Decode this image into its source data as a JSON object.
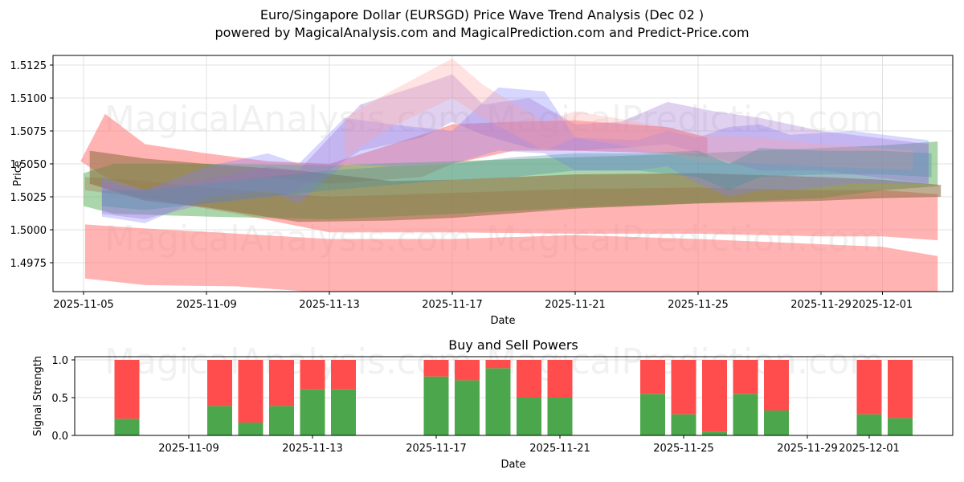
{
  "header": {
    "title": "Euro/Singapore Dollar (EURSGD) Price Wave Trend Analysis (Dec 02 )",
    "subtitle": "powered by MagicalAnalysis.com and MagicalPrediction.com and Predict-Price.com"
  },
  "watermarks": [
    "MagicalAnalysis.com",
    "MagicalPrediction.com"
  ],
  "colors": {
    "buy": "#4ca64c",
    "sell": "#ff4c4c",
    "band_red": "#ff8080",
    "band_green": "#66b366",
    "band_blue": "#8080ff",
    "band_purple": "#a070d0",
    "grid": "#d9d9d9"
  },
  "chart_data": [
    {
      "type": "area",
      "title": "",
      "xlabel": "Date",
      "ylabel": "Price",
      "ylim": [
        1.4955,
        1.5132
      ],
      "xlim": [
        "2025-11-04",
        "2025-12-03"
      ],
      "grid": true,
      "x_ticks": [
        "2025-11-05",
        "2025-11-09",
        "2025-11-13",
        "2025-11-17",
        "2025-11-21",
        "2025-11-25",
        "2025-11-29",
        "2025-12-01"
      ],
      "y_ticks": [
        "1.4975",
        "1.5000",
        "1.5025",
        "1.5050",
        "1.5075",
        "1.5100",
        "1.5125"
      ],
      "series": [
        {
          "name": "red-wave-low",
          "color": "#ff8080",
          "opacity": 0.6,
          "x": [
            5.05,
            7,
            10,
            13,
            17,
            21,
            25,
            29,
            31,
            32.8
          ],
          "upper": [
            1.5004,
            1.5001,
            1.4997,
            1.4993,
            1.4993,
            1.4996,
            1.4993,
            1.4989,
            1.4987,
            1.498
          ],
          "lower": [
            1.4963,
            1.4958,
            1.4957,
            1.4952,
            1.495,
            1.495,
            1.495,
            1.495,
            1.495,
            1.495
          ]
        },
        {
          "name": "red-wave-mid",
          "color": "#ff8080",
          "opacity": 0.6,
          "x": [
            5.05,
            7,
            10,
            13,
            17,
            21,
            25,
            29,
            31,
            32.8
          ],
          "upper": [
            1.504,
            1.5037,
            1.503,
            1.5025,
            1.5028,
            1.5031,
            1.5032,
            1.503,
            1.503,
            1.5027
          ],
          "lower": [
            1.503,
            1.5024,
            1.5012,
            1.4998,
            1.4998,
            1.4997,
            1.4997,
            1.4995,
            1.4995,
            1.4992
          ]
        },
        {
          "name": "red-wave-high",
          "color": "#ff8080",
          "opacity": 0.6,
          "x": [
            4.9,
            5.7,
            7,
            9,
            11,
            13,
            16,
            17,
            19,
            21,
            24,
            25.3
          ],
          "upper": [
            1.5052,
            1.5088,
            1.5065,
            1.5058,
            1.5052,
            1.505,
            1.5072,
            1.508,
            1.5082,
            1.5083,
            1.5078,
            1.507
          ],
          "lower": [
            1.5052,
            1.504,
            1.503,
            1.5035,
            1.504,
            1.5035,
            1.504,
            1.505,
            1.506,
            1.506,
            1.5058,
            1.5055
          ]
        },
        {
          "name": "green-wave",
          "color": "#66b366",
          "opacity": 0.55,
          "x": [
            5,
            6,
            9,
            13,
            17,
            21,
            25,
            29,
            31,
            32.8
          ],
          "upper": [
            1.5043,
            1.505,
            1.505,
            1.5049,
            1.5052,
            1.5055,
            1.5058,
            1.5062,
            1.5064,
            1.5067
          ],
          "lower": [
            1.5018,
            1.5012,
            1.501,
            1.5008,
            1.5012,
            1.5017,
            1.502,
            1.5024,
            1.503,
            1.5033
          ]
        },
        {
          "name": "olive-wave",
          "color": "#8a6a3a",
          "opacity": 0.55,
          "x": [
            5.2,
            7,
            9,
            12,
            15,
            17,
            21,
            25,
            29,
            31,
            32.9
          ],
          "upper": [
            1.506,
            1.5054,
            1.505,
            1.5045,
            1.5037,
            1.5038,
            1.5042,
            1.5043,
            1.504,
            1.5038,
            1.5034
          ],
          "lower": [
            1.5035,
            1.5022,
            1.5017,
            1.5006,
            1.5007,
            1.5009,
            1.5016,
            1.502,
            1.5022,
            1.5024,
            1.5025
          ]
        },
        {
          "name": "blue-wave-1",
          "color": "#8080ff",
          "opacity": 0.32,
          "x": [
            5.6,
            7,
            9,
            11,
            12,
            13.5,
            15,
            17,
            18.5,
            20,
            21,
            23,
            24,
            25,
            26,
            27,
            28,
            30,
            32.5
          ],
          "upper": [
            1.504,
            1.503,
            1.5048,
            1.5058,
            1.505,
            1.5085,
            1.508,
            1.5075,
            1.5108,
            1.5105,
            1.507,
            1.5068,
            1.5075,
            1.507,
            1.5078,
            1.508,
            1.5072,
            1.5075,
            1.5068
          ],
          "lower": [
            1.501,
            1.5005,
            1.5025,
            1.503,
            1.502,
            1.505,
            1.5048,
            1.505,
            1.506,
            1.5058,
            1.5045,
            1.5045,
            1.5048,
            1.5035,
            1.5025,
            1.503,
            1.503,
            1.5035,
            1.5035
          ]
        },
        {
          "name": "purple-wave-1",
          "color": "#a070d0",
          "opacity": 0.32,
          "x": [
            5.6,
            7,
            9,
            11,
            12,
            14,
            16,
            17,
            18,
            19.5,
            21,
            22.5,
            24,
            25.5,
            27,
            29,
            32.5
          ],
          "upper": [
            1.5035,
            1.503,
            1.5038,
            1.5048,
            1.5045,
            1.5095,
            1.511,
            1.5118,
            1.5095,
            1.51,
            1.508,
            1.5082,
            1.5097,
            1.509,
            1.5085,
            1.5075,
            1.5065
          ],
          "lower": [
            1.5012,
            1.5008,
            1.502,
            1.5025,
            1.503,
            1.506,
            1.507,
            1.5082,
            1.5072,
            1.5062,
            1.506,
            1.5062,
            1.5065,
            1.5055,
            1.5045,
            1.5045,
            1.5035
          ]
        },
        {
          "name": "pink-wave",
          "color": "#ffa0a0",
          "opacity": 0.3,
          "x": [
            13.5,
            15,
            17,
            18,
            20,
            21,
            23,
            25,
            27,
            29,
            32
          ],
          "upper": [
            1.5085,
            1.5105,
            1.513,
            1.511,
            1.5082,
            1.509,
            1.5082,
            1.5072,
            1.507,
            1.5065,
            1.506
          ],
          "lower": [
            1.5055,
            1.5078,
            1.51,
            1.5085,
            1.506,
            1.507,
            1.5062,
            1.5052,
            1.505,
            1.5048,
            1.5045
          ]
        },
        {
          "name": "teal-wave",
          "color": "#4a90a0",
          "opacity": 0.35,
          "x": [
            5.6,
            7,
            9,
            11,
            13,
            15,
            17,
            19,
            21,
            23,
            25,
            26,
            27,
            29,
            31,
            32.6
          ],
          "upper": [
            1.503,
            1.503,
            1.5035,
            1.504,
            1.5045,
            1.5048,
            1.505,
            1.5055,
            1.5058,
            1.5058,
            1.506,
            1.505,
            1.5062,
            1.506,
            1.506,
            1.5058
          ],
          "lower": [
            1.5018,
            1.5015,
            1.502,
            1.5025,
            1.503,
            1.5034,
            1.5038,
            1.504,
            1.5045,
            1.5045,
            1.504,
            1.503,
            1.504,
            1.5042,
            1.5042,
            1.504
          ]
        }
      ]
    },
    {
      "type": "bar",
      "title": "Buy and Sell Powers",
      "xlabel": "Date",
      "ylabel": "Signal Strength",
      "ylim": [
        0,
        1.05
      ],
      "grid": true,
      "x_ticks": [
        "2025-11-09",
        "2025-11-13",
        "2025-11-17",
        "2025-11-21",
        "2025-11-25",
        "2025-11-29",
        "2025-12-01"
      ],
      "y_ticks": [
        "0.0",
        "0.5",
        "1.0"
      ],
      "categories": [
        "2025-11-07",
        "2025-11-10",
        "2025-11-11",
        "2025-11-12",
        "2025-11-13",
        "2025-11-14",
        "2025-11-17",
        "2025-11-18",
        "2025-11-19",
        "2025-11-20",
        "2025-11-21",
        "2025-11-24",
        "2025-11-25",
        "2025-11-26",
        "2025-11-27",
        "2025-11-28",
        "2025-12-01",
        "2025-12-02"
      ],
      "series": [
        {
          "name": "Buy",
          "color": "#4ca64c",
          "values": [
            0.22,
            0.39,
            0.17,
            0.39,
            0.61,
            0.61,
            0.78,
            0.73,
            0.89,
            0.5,
            0.5,
            0.55,
            0.28,
            0.05,
            0.55,
            0.33,
            0.28,
            0.23
          ]
        },
        {
          "name": "Sell",
          "color": "#ff4c4c",
          "values": [
            0.78,
            0.61,
            0.83,
            0.61,
            0.39,
            0.39,
            0.22,
            0.27,
            0.11,
            0.5,
            0.5,
            0.45,
            0.72,
            0.95,
            0.45,
            0.67,
            0.72,
            0.77
          ]
        }
      ]
    }
  ]
}
